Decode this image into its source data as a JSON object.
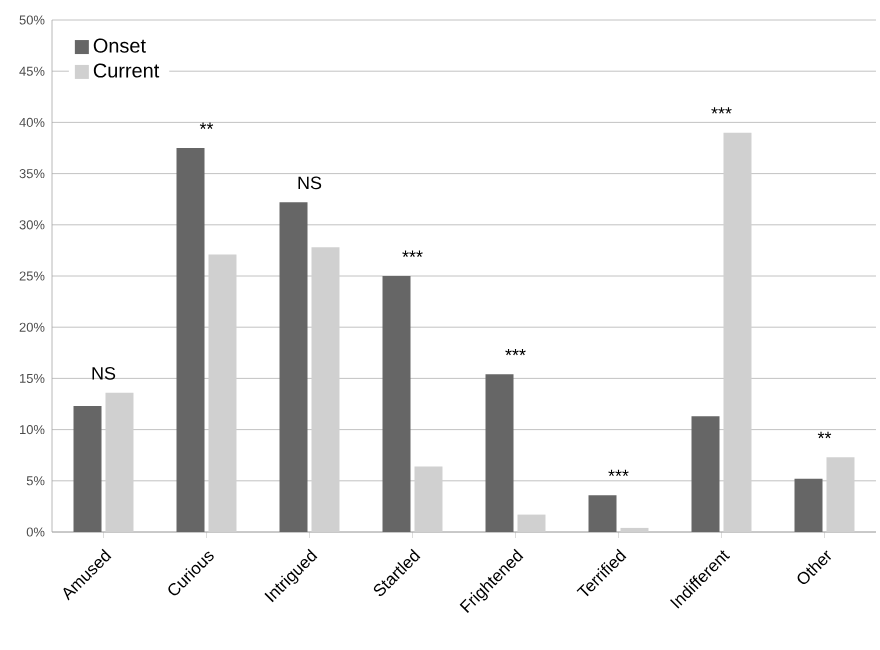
{
  "chart_data": {
    "type": "bar",
    "categories": [
      "Amused",
      "Curious",
      "Intrigued",
      "Startled",
      "Frightened",
      "Terrified",
      "Indifferent",
      "Other"
    ],
    "series": [
      {
        "name": "Onset",
        "color": "#666666",
        "values": [
          12.3,
          37.5,
          32.2,
          25.0,
          15.4,
          3.6,
          11.3,
          5.2
        ]
      },
      {
        "name": "Current",
        "color": "#d0d0d0",
        "values": [
          13.6,
          27.1,
          27.8,
          6.4,
          1.7,
          0.4,
          39.0,
          7.3
        ]
      }
    ],
    "ylim": [
      0,
      50
    ],
    "yticks": [
      {
        "value": 0,
        "label": "0%"
      },
      {
        "value": 5,
        "label": "5%"
      },
      {
        "value": 10,
        "label": "10%"
      },
      {
        "value": 15,
        "label": "15%"
      },
      {
        "value": 20,
        "label": "20%"
      },
      {
        "value": 25,
        "label": "25%"
      },
      {
        "value": 30,
        "label": "30%"
      },
      {
        "value": 35,
        "label": "35%"
      },
      {
        "value": 40,
        "label": "40%"
      },
      {
        "value": 45,
        "label": "45%"
      },
      {
        "value": 50,
        "label": "50%"
      }
    ],
    "grid": "y",
    "legend": "top left",
    "annotations": [
      "NS",
      "**",
      "NS",
      "***",
      "***",
      "***",
      "***",
      "**"
    ]
  }
}
